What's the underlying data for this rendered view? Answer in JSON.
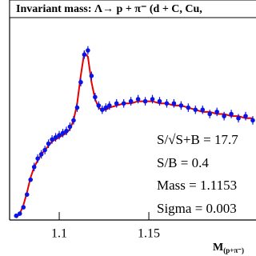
{
  "chart_data": {
    "type": "scatter",
    "title": "Invariant mass:  Λ→ p +  π⁻ (d + C, Cu,",
    "x_label": {
      "main": "M",
      "sub": "(p+π⁻)"
    },
    "x": [
      1.076,
      1.078,
      1.08,
      1.082,
      1.084,
      1.086,
      1.088,
      1.09,
      1.092,
      1.094,
      1.096,
      1.098,
      1.1,
      1.102,
      1.104,
      1.106,
      1.108,
      1.11,
      1.112,
      1.114,
      1.116,
      1.118,
      1.12,
      1.122,
      1.124,
      1.126,
      1.128,
      1.132,
      1.136,
      1.14,
      1.144,
      1.148,
      1.152,
      1.156,
      1.16,
      1.164,
      1.168,
      1.172,
      1.176,
      1.18,
      1.184,
      1.188,
      1.192,
      1.196,
      1.2,
      1.204,
      1.208
    ],
    "series": [
      {
        "color": "#0a14e6",
        "values": [
          2,
          3,
          6,
          12,
          19,
          25,
          29,
          31,
          33,
          36,
          38,
          39,
          40,
          41,
          42,
          44,
          47,
          53,
          65,
          78,
          80,
          68,
          58,
          54,
          52,
          53,
          54,
          55,
          55,
          56,
          57,
          56,
          57,
          56,
          55,
          55,
          54,
          53,
          52,
          52,
          50,
          51,
          49,
          50,
          48,
          49,
          47
        ],
        "errors": [
          1,
          1,
          1,
          1,
          1,
          2,
          2,
          2,
          2,
          2,
          2,
          2,
          2,
          2,
          2,
          2,
          2,
          2,
          2,
          2,
          2,
          2,
          2,
          2,
          2,
          2,
          2,
          2,
          2,
          2,
          2,
          2,
          2,
          2,
          2,
          2,
          2,
          2,
          2,
          2,
          2,
          2,
          2,
          2,
          2,
          2,
          2
        ]
      },
      {
        "color": "#e60000",
        "values": [
          1,
          3,
          7,
          13,
          20,
          25,
          28,
          31,
          33,
          35,
          37,
          38,
          39,
          40,
          41,
          43,
          47,
          55,
          68,
          79,
          77,
          65,
          57,
          53,
          52,
          52,
          53,
          54,
          55,
          55,
          56,
          56,
          56,
          55,
          55,
          54,
          54,
          53,
          52,
          51,
          51,
          50,
          50,
          49,
          49,
          48,
          48
        ]
      }
    ],
    "xlim": [
      1.0723,
      1.2098
    ],
    "ylim": [
      0,
      100
    ],
    "xticks": [
      1.1,
      1.15
    ],
    "annotations": [
      "S/√S+B = 17.7",
      "S/B = 0.4",
      "Mass = 1.1153",
      "Sigma = 0.003"
    ]
  }
}
